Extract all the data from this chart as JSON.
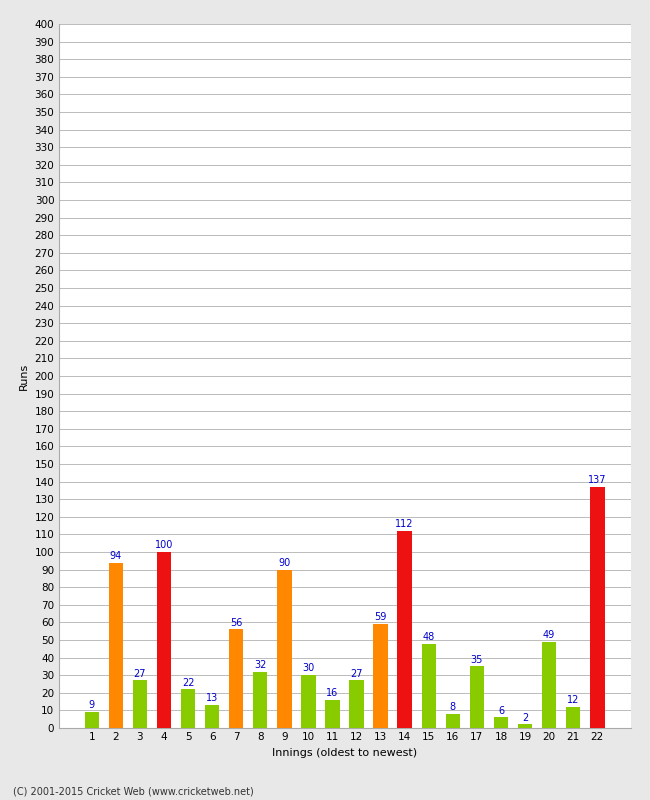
{
  "innings": [
    1,
    2,
    3,
    4,
    5,
    6,
    7,
    8,
    9,
    10,
    11,
    12,
    13,
    14,
    15,
    16,
    17,
    18,
    19,
    20,
    21,
    22
  ],
  "values": [
    9,
    94,
    27,
    100,
    22,
    13,
    56,
    32,
    90,
    30,
    16,
    27,
    59,
    112,
    48,
    8,
    35,
    6,
    2,
    49,
    12,
    137
  ],
  "colors": [
    "#88cc00",
    "#ff8800",
    "#88cc00",
    "#ee1111",
    "#88cc00",
    "#88cc00",
    "#ff8800",
    "#88cc00",
    "#ff8800",
    "#88cc00",
    "#88cc00",
    "#88cc00",
    "#ff8800",
    "#ee1111",
    "#88cc00",
    "#88cc00",
    "#88cc00",
    "#88cc00",
    "#88cc00",
    "#88cc00",
    "#88cc00",
    "#ee1111"
  ],
  "xlabel": "Innings (oldest to newest)",
  "ylabel": "Runs",
  "ylim": [
    0,
    400
  ],
  "ytick_step": 10,
  "plot_bg": "#ffffff",
  "fig_bg": "#e8e8e8",
  "grid_color": "#bbbbbb",
  "label_color": "#0000cc",
  "label_fontsize": 7,
  "axis_label_fontsize": 8,
  "tick_fontsize": 7.5,
  "footer": "(C) 2001-2015 Cricket Web (www.cricketweb.net)",
  "bar_width": 0.6
}
